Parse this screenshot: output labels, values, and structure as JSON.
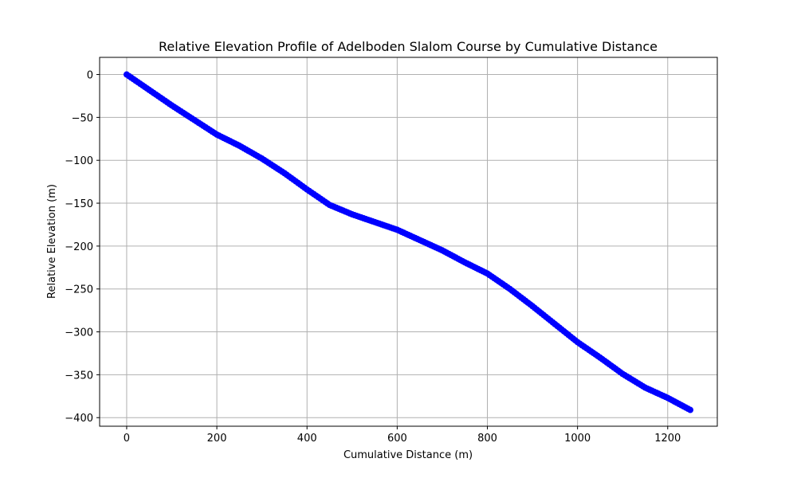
{
  "chart_data": {
    "type": "line",
    "title": "Relative Elevation Profile of Adelboden Slalom Course by Cumulative Distance",
    "xlabel": "Cumulative Distance (m)",
    "ylabel": "Relative Elevation (m)",
    "xlim": [
      -60,
      1310
    ],
    "ylim": [
      -410,
      20
    ],
    "xticks": [
      0,
      200,
      400,
      600,
      800,
      1000,
      1200
    ],
    "yticks": [
      0,
      -50,
      -100,
      -150,
      -200,
      -250,
      -300,
      -350,
      -400
    ],
    "grid": true,
    "marker": "circle",
    "color": "#0000ff",
    "profile_points": {
      "x": [
        0,
        50,
        100,
        150,
        200,
        250,
        300,
        350,
        400,
        450,
        500,
        550,
        600,
        650,
        700,
        750,
        800,
        850,
        900,
        950,
        1000,
        1050,
        1100,
        1150,
        1200,
        1250
      ],
      "y": [
        0,
        -18,
        -36,
        -53,
        -70,
        -83,
        -98,
        -115,
        -134,
        -152,
        -163,
        -172,
        -181,
        -193,
        -205,
        -219,
        -232,
        -250,
        -270,
        -291,
        -312,
        -330,
        -349,
        -365,
        -377,
        -391
      ]
    }
  }
}
